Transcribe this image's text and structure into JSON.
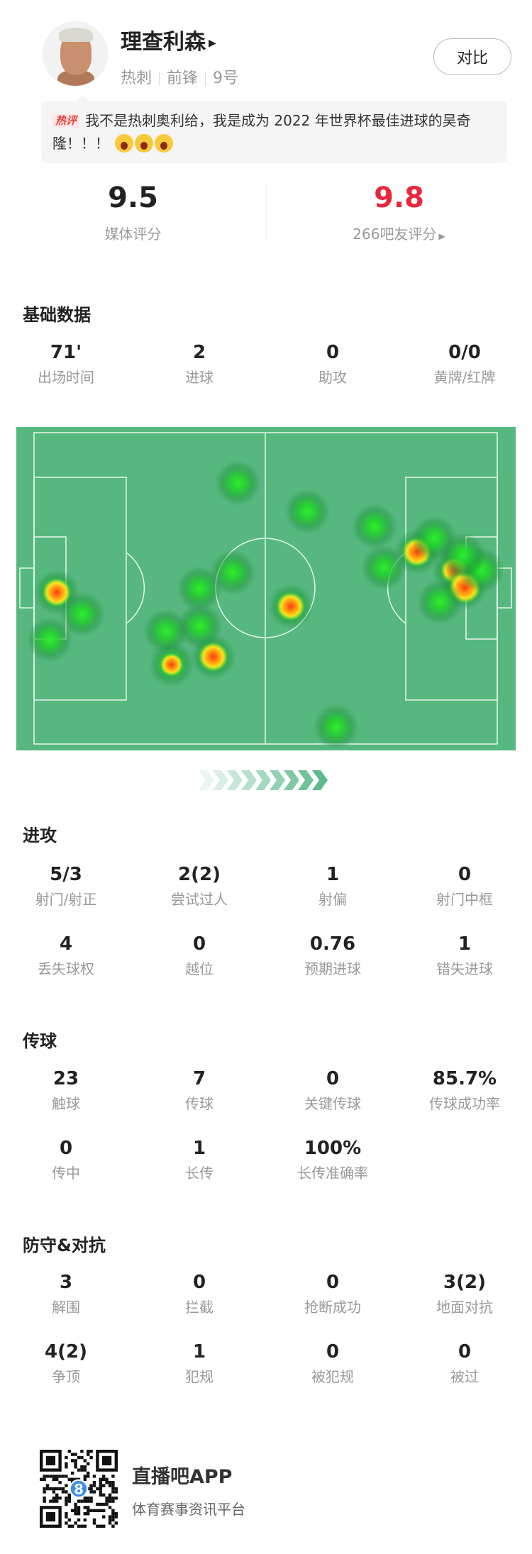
{
  "player": {
    "name": "理查利森",
    "team": "热刺",
    "position": "前锋",
    "number": "9号",
    "compare_label": "对比"
  },
  "comment": {
    "tag": "热评",
    "text": "我不是热刺奥利给，我是成为 2022 年世界杯最佳进球的吴奇隆！！！",
    "emoji": "crying-face-icon",
    "emoji_count": 3
  },
  "ratings": {
    "media_value": "9.5",
    "media_label": "媒体评分",
    "fan_value": "9.8",
    "fan_label": "266吧友评分",
    "fan_color": "#e8263c"
  },
  "basic": {
    "title": "基础数据",
    "items": [
      {
        "v": "71'",
        "l": "出场时间"
      },
      {
        "v": "2",
        "l": "进球"
      },
      {
        "v": "0",
        "l": "助攻"
      },
      {
        "v": "0/0",
        "l": "黄牌/红牌"
      }
    ]
  },
  "heatmap": {
    "pitch_color": "#56b87f",
    "line_color": "#e8f5ec",
    "attack_direction": "right",
    "points": [
      {
        "x": 44.0,
        "y": 16.2,
        "i": 0.3
      },
      {
        "x": 59.0,
        "y": 25.3,
        "i": 0.3
      },
      {
        "x": 73.5,
        "y": 30.1,
        "i": 0.3
      },
      {
        "x": 82.7,
        "y": 38.3,
        "i": 0.85
      },
      {
        "x": 86.4,
        "y": 33.9,
        "i": 0.3
      },
      {
        "x": 75.5,
        "y": 43.3,
        "i": 0.3
      },
      {
        "x": 90.8,
        "y": 44.2,
        "i": 0.75
      },
      {
        "x": 93.0,
        "y": 49.7,
        "i": 1.0
      },
      {
        "x": 96.6,
        "y": 44.2,
        "i": 0.3
      },
      {
        "x": 87.6,
        "y": 54.4,
        "i": 0.3
      },
      {
        "x": 92.6,
        "y": 39.4,
        "i": 0.3
      },
      {
        "x": 55.4,
        "y": 55.8,
        "i": 0.8
      },
      {
        "x": 42.9,
        "y": 44.9,
        "i": 0.3
      },
      {
        "x": 35.7,
        "y": 50.1,
        "i": 0.3
      },
      {
        "x": 35.8,
        "y": 62.2,
        "i": 0.3
      },
      {
        "x": 28.5,
        "y": 63.8,
        "i": 0.3
      },
      {
        "x": 38.7,
        "y": 72.0,
        "i": 0.85
      },
      {
        "x": 29.7,
        "y": 74.5,
        "i": 0.5
      },
      {
        "x": 4.9,
        "y": 51.3,
        "i": 0.8
      },
      {
        "x": 10.4,
        "y": 58.3,
        "i": 0.3
      },
      {
        "x": 3.4,
        "y": 66.5,
        "i": 0.3
      },
      {
        "x": 65.2,
        "y": 94.5,
        "i": 0.3
      }
    ]
  },
  "attack": {
    "title": "进攻",
    "items": [
      {
        "v": "5/3",
        "l": "射门/射正"
      },
      {
        "v": "2(2)",
        "l": "尝试过人"
      },
      {
        "v": "1",
        "l": "射偏"
      },
      {
        "v": "0",
        "l": "射门中框"
      },
      {
        "v": "4",
        "l": "丢失球权"
      },
      {
        "v": "0",
        "l": "越位"
      },
      {
        "v": "0.76",
        "l": "预期进球"
      },
      {
        "v": "1",
        "l": "错失进球"
      }
    ]
  },
  "passing": {
    "title": "传球",
    "items": [
      {
        "v": "23",
        "l": "触球"
      },
      {
        "v": "7",
        "l": "传球"
      },
      {
        "v": "0",
        "l": "关键传球"
      },
      {
        "v": "85.7%",
        "l": "传球成功率"
      },
      {
        "v": "0",
        "l": "传中"
      },
      {
        "v": "1",
        "l": "长传"
      },
      {
        "v": "100%",
        "l": "长传准确率"
      }
    ]
  },
  "defense": {
    "title": "防守&对抗",
    "items": [
      {
        "v": "3",
        "l": "解围"
      },
      {
        "v": "0",
        "l": "拦截"
      },
      {
        "v": "0",
        "l": "抢断成功"
      },
      {
        "v": "3(2)",
        "l": "地面对抗"
      },
      {
        "v": "4(2)",
        "l": "争顶"
      },
      {
        "v": "1",
        "l": "犯规"
      },
      {
        "v": "0",
        "l": "被犯规"
      },
      {
        "v": "0",
        "l": "被过"
      }
    ]
  },
  "footer": {
    "app_name": "直播吧APP",
    "slogan": "体育赛事资讯平台",
    "qr_badge": "8"
  }
}
